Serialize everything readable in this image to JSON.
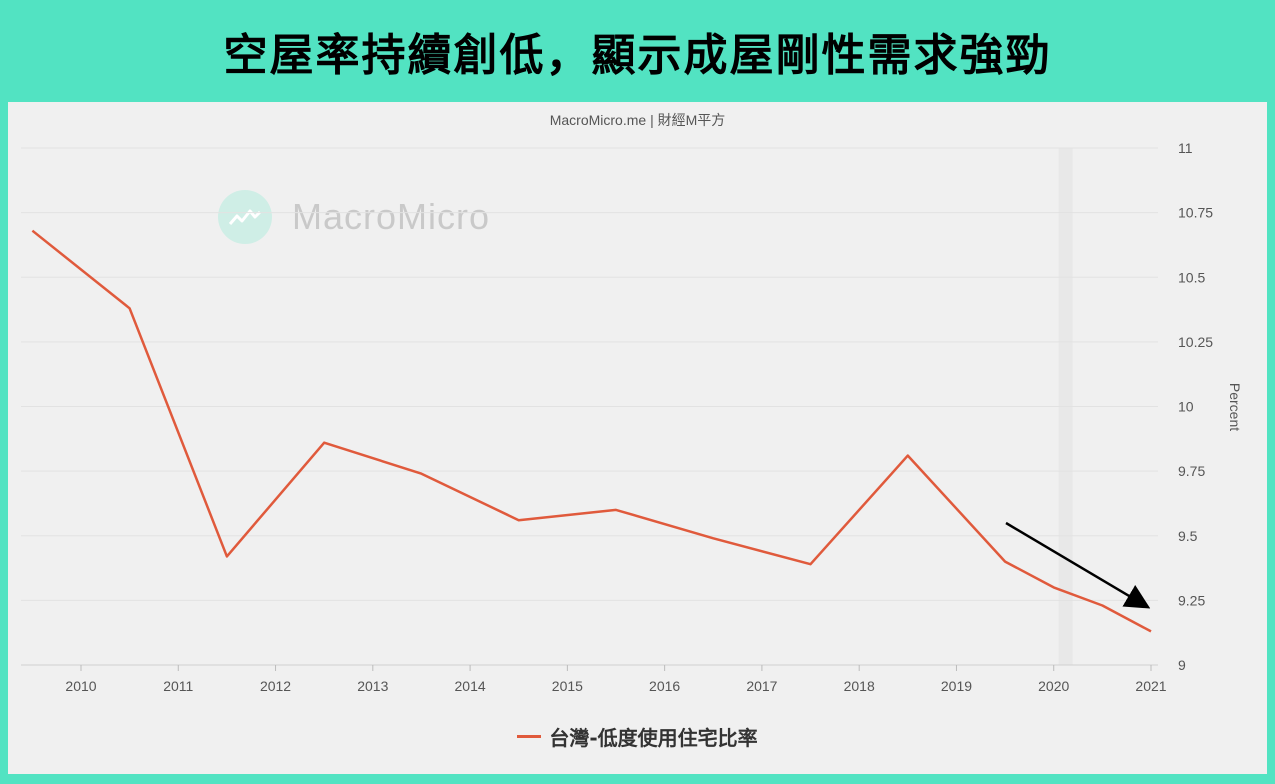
{
  "headline": "空屋率持續創低，顯示成屋剛性需求強勁",
  "source": "MacroMicro.me | 財經M平方",
  "watermark": "MacroMicro",
  "colors": {
    "background": "#52e3c2",
    "panel": "#f0f0f0",
    "series": "#e05a3c",
    "arrow": "#000000"
  },
  "chart_data": {
    "type": "line",
    "title": "",
    "xlabel": "",
    "ylabel": "Percent",
    "ylim": [
      9,
      11
    ],
    "yticks": [
      "9",
      "9.25",
      "9.5",
      "9.75",
      "10",
      "10.25",
      "10.5",
      "10.75",
      "11"
    ],
    "xticks": [
      "2010",
      "2011",
      "2012",
      "2013",
      "2014",
      "2015",
      "2016",
      "2017",
      "2018",
      "2019",
      "2020",
      "2021"
    ],
    "series": [
      {
        "name": "台灣-低度使用住宅比率",
        "x": [
          2009.5,
          2010.5,
          2011.5,
          2012.5,
          2013.5,
          2014.5,
          2015.5,
          2016.5,
          2017.5,
          2018.5,
          2019.5,
          2020.0,
          2020.5,
          2021.0
        ],
        "values": [
          10.68,
          10.38,
          9.42,
          9.86,
          9.74,
          9.56,
          9.6,
          9.49,
          9.39,
          9.81,
          9.4,
          9.3,
          9.23,
          9.13
        ]
      }
    ],
    "annotation": "arrow-down-trend",
    "grid": true,
    "legend": "bottom"
  }
}
